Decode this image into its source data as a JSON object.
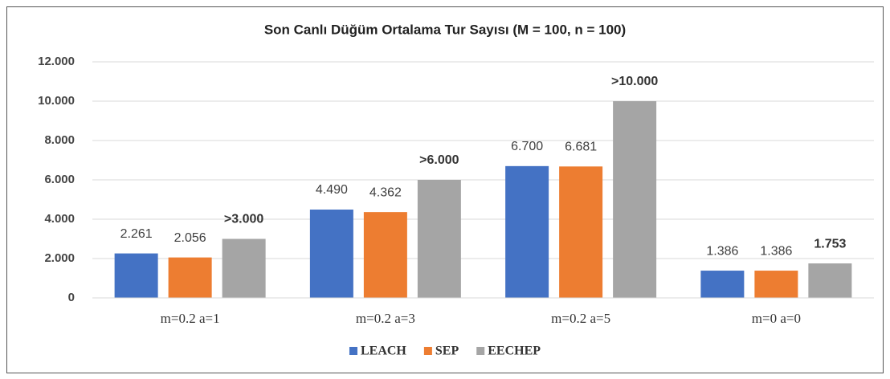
{
  "chart_data": {
    "type": "bar",
    "title": "Son Canlı Düğüm Ortalama Tur Sayısı (M = 100, n = 100)",
    "categories": [
      "m=0.2 a=1",
      "m=0.2 a=3",
      "m=0.2 a=5",
      "m=0 a=0"
    ],
    "series": [
      {
        "name": "LEACH",
        "color": "#4472c4",
        "values": [
          2261,
          4490,
          6700,
          1386
        ],
        "value_labels": [
          "2.261",
          "4.490",
          "6.700",
          "1.386"
        ]
      },
      {
        "name": "SEP",
        "color": "#ed7d31",
        "values": [
          2056,
          4362,
          6681,
          1386
        ],
        "value_labels": [
          "2.056",
          "4.362",
          "6.681",
          "1.386"
        ]
      },
      {
        "name": "EECHEP",
        "color": "#a5a5a5",
        "values": [
          3000,
          6000,
          10000,
          1753
        ],
        "value_labels": [
          ">3.000",
          ">6.000",
          ">10.000",
          "1.753"
        ]
      }
    ],
    "ylim": [
      0,
      12000
    ],
    "yticks": [
      0,
      {
        "value": 2000,
        "label": "2.000"
      },
      {
        "value": 4000,
        "label": "4.000"
      },
      {
        "value": 6000,
        "label": "6.000"
      },
      {
        "value": 8000,
        "label": "8.000"
      },
      {
        "value": 10000,
        "label": "10.000"
      },
      {
        "value": 12000,
        "label": "12.000"
      }
    ],
    "grid": true,
    "legend": "bottom"
  }
}
